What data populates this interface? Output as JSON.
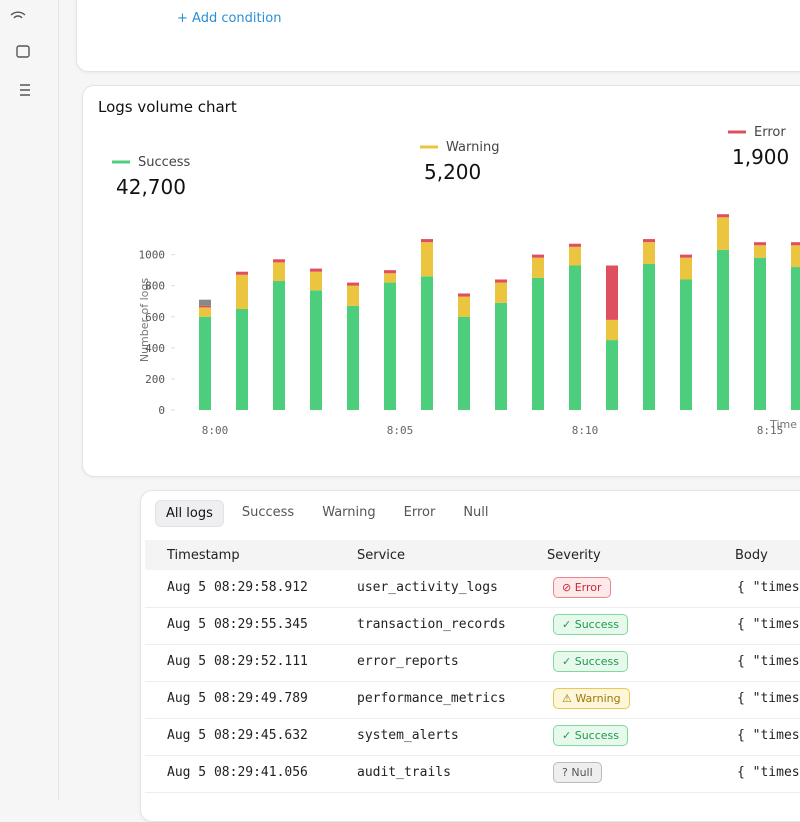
{
  "filter": {
    "add_condition": "+ Add condition"
  },
  "chart_data": {
    "type": "bar",
    "stacked": true,
    "title": "Logs volume chart",
    "ylabel": "Number of logs",
    "xlabel": "Time",
    "categories": [
      "8:00",
      null,
      null,
      null,
      null,
      "8:05",
      null,
      null,
      null,
      null,
      "8:10",
      null,
      null,
      null,
      null,
      "8:15",
      null
    ],
    "series": [
      {
        "name": "Success",
        "color": "#4cce7c",
        "total": 42700,
        "total_label": "42,700",
        "values": [
          600,
          650,
          830,
          770,
          670,
          820,
          860,
          600,
          690,
          850,
          930,
          450,
          940,
          840,
          1030,
          980,
          920
        ]
      },
      {
        "name": "Warning",
        "color": "#ebc53f",
        "total": 5200,
        "total_label": "5,200",
        "values": [
          60,
          220,
          120,
          120,
          130,
          60,
          220,
          130,
          130,
          130,
          120,
          130,
          140,
          140,
          210,
          80,
          140
        ]
      },
      {
        "name": "Error",
        "color": "#e04f5f",
        "total": 1900,
        "total_label": "1,900",
        "values": [
          10,
          20,
          20,
          20,
          20,
          20,
          20,
          20,
          20,
          20,
          20,
          350,
          20,
          20,
          20,
          20,
          20
        ]
      },
      {
        "name": "Null",
        "color": "#888888",
        "legend": false,
        "values": [
          40,
          0,
          0,
          0,
          0,
          0,
          0,
          0,
          0,
          0,
          0,
          0,
          0,
          0,
          0,
          0,
          0
        ]
      }
    ],
    "ylim": [
      0,
      1300
    ],
    "yticks": [
      0,
      200,
      400,
      600,
      800,
      1000
    ]
  },
  "tabs": [
    "All logs",
    "Success",
    "Warning",
    "Error",
    "Null"
  ],
  "table": {
    "columns": [
      "Timestamp",
      "Service",
      "Severity",
      "Body"
    ],
    "rows": [
      [
        "Aug 5 08:29:58.912",
        "user_activity_logs",
        "Error",
        "{ \"times"
      ],
      [
        "Aug 5 08:29:55.345",
        "transaction_records",
        "Success",
        "{ \"times"
      ],
      [
        "Aug 5 08:29:52.111",
        "error_reports",
        "Success",
        "{ \"times"
      ],
      [
        "Aug 5 08:29:49.789",
        "performance_metrics",
        "Warning",
        "{ \"times"
      ],
      [
        "Aug 5 08:29:45.632",
        "system_alerts",
        "Success",
        "{ \"times"
      ],
      [
        "Aug 5 08:29:41.056",
        "audit_trails",
        "Null",
        "{ \"times"
      ]
    ]
  }
}
